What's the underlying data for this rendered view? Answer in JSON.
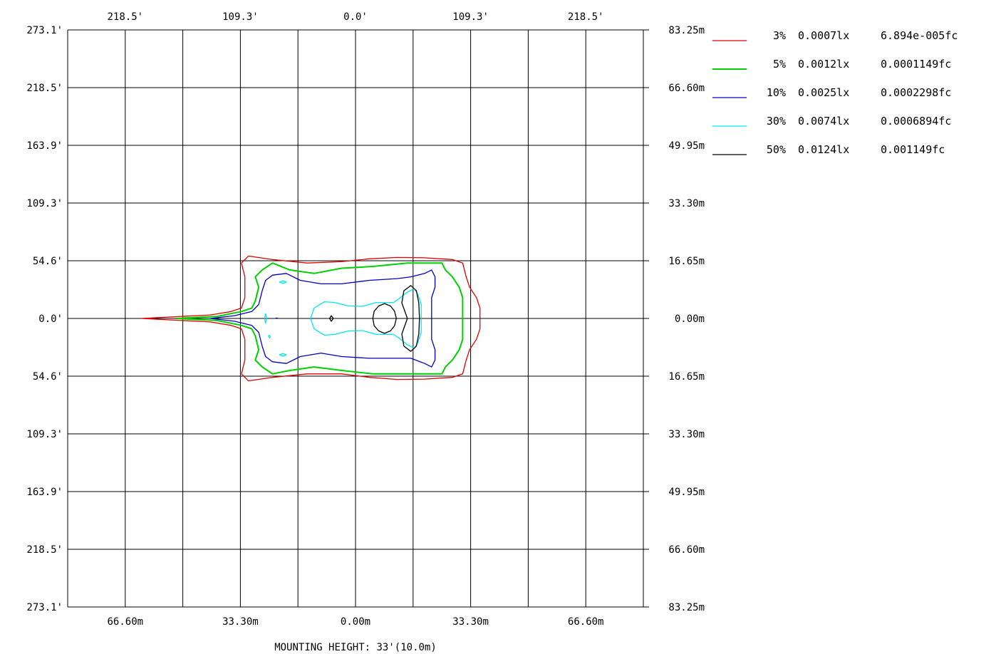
{
  "chart_data": {
    "type": "isolux-contour",
    "grid": true,
    "legend_placement": "right",
    "x_range_m": [
      -83.25,
      83.25
    ],
    "y_range_m": [
      -83.25,
      83.25
    ],
    "top_tick_labels": [
      "218.5'",
      "109.3'",
      "0.0'",
      "109.3'",
      "218.5'"
    ],
    "bottom_tick_labels": [
      "66.60m",
      "33.30m",
      "0.00m",
      "33.30m",
      "66.60m"
    ],
    "left_tick_labels": [
      "273.1'",
      "218.5'",
      "163.9'",
      "109.3'",
      "54.6'",
      "0.0'",
      "54.6'",
      "109.3'",
      "163.9'",
      "218.5'",
      "273.1'"
    ],
    "right_tick_labels": [
      "83.25m",
      "66.60m",
      "49.95m",
      "33.30m",
      "16.65m",
      "0.00m",
      "16.65m",
      "33.30m",
      "49.95m",
      "66.60m",
      "83.25m"
    ],
    "footer": "MOUNTING HEIGHT: 33'(10.0m)",
    "series": [
      {
        "name": "3%",
        "lux": "0.0007lx",
        "fc": "6.894e-005fc",
        "color": "#e00000",
        "points": [
          [
            -62,
            0
          ],
          [
            -42,
            -1
          ],
          [
            -36,
            -2
          ],
          [
            -33,
            -3
          ],
          [
            -32,
            -6
          ],
          [
            -32,
            -12
          ],
          [
            -33,
            -16
          ],
          [
            -31,
            -18
          ],
          [
            -24,
            -17
          ],
          [
            -14,
            -16
          ],
          [
            -4,
            -16
          ],
          [
            4,
            -17
          ],
          [
            12,
            -17.6
          ],
          [
            20,
            -17.5
          ],
          [
            28,
            -17
          ],
          [
            31,
            -16
          ],
          [
            32,
            -12
          ],
          [
            33,
            -9
          ],
          [
            35,
            -6
          ],
          [
            36,
            -3
          ],
          [
            36,
            0
          ],
          [
            36,
            3
          ],
          [
            35,
            6
          ],
          [
            33,
            9
          ],
          [
            32,
            12
          ],
          [
            31,
            16
          ],
          [
            28,
            17
          ],
          [
            20,
            17.5
          ],
          [
            12,
            17.6
          ],
          [
            4,
            17.2
          ],
          [
            -4,
            16.4
          ],
          [
            -14,
            16
          ],
          [
            -24,
            17
          ],
          [
            -31,
            18
          ],
          [
            -33,
            16
          ],
          [
            -32,
            12
          ],
          [
            -32,
            6
          ],
          [
            -33,
            3
          ],
          [
            -36,
            2
          ],
          [
            -42,
            1
          ],
          [
            -62,
            0
          ]
        ]
      },
      {
        "name": "5%",
        "lux": "0.0012lx",
        "fc": "0.0001149fc",
        "color": "#00d000",
        "points": [
          [
            -52,
            0
          ],
          [
            -40,
            -0.6
          ],
          [
            -33,
            -2
          ],
          [
            -30,
            -3
          ],
          [
            -29,
            -5
          ],
          [
            -28,
            -9
          ],
          [
            -29,
            -12
          ],
          [
            -27,
            -14
          ],
          [
            -24,
            -16
          ],
          [
            -19,
            -15
          ],
          [
            -12,
            -14
          ],
          [
            -4,
            -15
          ],
          [
            5,
            -16
          ],
          [
            15,
            -16
          ],
          [
            20,
            -16
          ],
          [
            25,
            -16
          ],
          [
            26,
            -14
          ],
          [
            28,
            -12
          ],
          [
            30,
            -9
          ],
          [
            31,
            -6
          ],
          [
            31,
            -3
          ],
          [
            31,
            0
          ],
          [
            31,
            3
          ],
          [
            31,
            6
          ],
          [
            30,
            9
          ],
          [
            28,
            12
          ],
          [
            26,
            14
          ],
          [
            25,
            16
          ],
          [
            20,
            16
          ],
          [
            15,
            16
          ],
          [
            5,
            15
          ],
          [
            -4,
            14.5
          ],
          [
            -12,
            13
          ],
          [
            -19,
            14
          ],
          [
            -24,
            16
          ],
          [
            -27,
            14
          ],
          [
            -29,
            12
          ],
          [
            -28,
            9
          ],
          [
            -29,
            5
          ],
          [
            -30,
            3
          ],
          [
            -33,
            2
          ],
          [
            -40,
            0.6
          ],
          [
            -52,
            0
          ]
        ]
      },
      {
        "name": "10%",
        "lux": "0.0025lx",
        "fc": "0.0002298fc",
        "color": "#0000c0",
        "points": [
          [
            -42,
            0
          ],
          [
            -35,
            -0.8
          ],
          [
            -30,
            -2
          ],
          [
            -28,
            -4
          ],
          [
            -27,
            -8
          ],
          [
            -26,
            -11
          ],
          [
            -24,
            -12.5
          ],
          [
            -20,
            -13
          ],
          [
            -16,
            -11
          ],
          [
            -10,
            -10
          ],
          [
            -4,
            -11
          ],
          [
            4,
            -11.5
          ],
          [
            12,
            -11.5
          ],
          [
            16,
            -11.5
          ],
          [
            20,
            -13
          ],
          [
            22,
            -14
          ],
          [
            23,
            -12
          ],
          [
            23,
            -9
          ],
          [
            22,
            -6
          ],
          [
            22,
            -3
          ],
          [
            22,
            0
          ],
          [
            22,
            3
          ],
          [
            22,
            6
          ],
          [
            23,
            9
          ],
          [
            23,
            12
          ],
          [
            22,
            14
          ],
          [
            20,
            13
          ],
          [
            16,
            12
          ],
          [
            12,
            11.5
          ],
          [
            4,
            11
          ],
          [
            -4,
            10
          ],
          [
            -10,
            10
          ],
          [
            -16,
            11
          ],
          [
            -20,
            13
          ],
          [
            -24,
            12.5
          ],
          [
            -26,
            11
          ],
          [
            -27,
            8
          ],
          [
            -28,
            4
          ],
          [
            -30,
            2
          ],
          [
            -35,
            0.8
          ],
          [
            -42,
            0
          ]
        ]
      },
      {
        "name": "30%",
        "lux": "0.0074lx",
        "fc": "0.0006894fc",
        "color": "#00e8f0",
        "points": [
          [
            -13,
            0
          ],
          [
            -12,
            -3
          ],
          [
            -9,
            -4.8
          ],
          [
            -6,
            -4.6
          ],
          [
            -2,
            -3.6
          ],
          [
            2,
            -3.5
          ],
          [
            6,
            -4.6
          ],
          [
            11,
            -4.6
          ],
          [
            13,
            -6
          ],
          [
            15,
            -7.6
          ],
          [
            17,
            -8.6
          ],
          [
            18,
            -7
          ],
          [
            19,
            -4
          ],
          [
            19,
            0
          ],
          [
            19,
            4
          ],
          [
            18,
            7
          ],
          [
            17,
            8.6
          ],
          [
            15,
            7.6
          ],
          [
            13,
            6
          ],
          [
            11,
            4.6
          ],
          [
            6,
            4.6
          ],
          [
            2,
            3.5
          ],
          [
            -2,
            3.6
          ],
          [
            -6,
            4.6
          ],
          [
            -9,
            4.8
          ],
          [
            -12,
            3
          ],
          [
            -13,
            0
          ]
        ]
      },
      {
        "name": "50%",
        "lux": "0.0124lx",
        "fc": "0.001149fc",
        "color": "#000000",
        "points": [
          [
            5,
            0
          ],
          [
            5.4,
            2.1
          ],
          [
            6.7,
            3.6
          ],
          [
            8.4,
            4.3
          ],
          [
            10.1,
            3.6
          ],
          [
            11.3,
            2.1
          ],
          [
            11.8,
            0
          ],
          [
            11.3,
            -2.1
          ],
          [
            10.1,
            -3.6
          ],
          [
            8.4,
            -4.3
          ],
          [
            6.7,
            -3.6
          ],
          [
            5.4,
            -2.1
          ],
          [
            5,
            0
          ]
        ]
      }
    ],
    "extra_contours": [
      {
        "color": "#00e8f0",
        "points": [
          [
            -26.3,
            0
          ],
          [
            -26,
            1.4
          ],
          [
            -25.7,
            0
          ],
          [
            -26,
            -1.4
          ],
          [
            -26.3,
            0
          ]
        ]
      },
      {
        "color": "#00e8f0",
        "points": [
          [
            -22,
            10.5
          ],
          [
            -21,
            10.9
          ],
          [
            -20,
            10.5
          ],
          [
            -21,
            10.1
          ],
          [
            -22,
            10.5
          ]
        ]
      },
      {
        "color": "#00e8f0",
        "points": [
          [
            -22,
            -10.5
          ],
          [
            -21,
            -10.9
          ],
          [
            -20,
            -10.5
          ],
          [
            -21,
            -10.1
          ],
          [
            -22,
            -10.5
          ]
        ]
      },
      {
        "color": "#00e8f0",
        "points": [
          [
            -25.2,
            -5.2
          ],
          [
            -24.8,
            -5.6
          ],
          [
            -24.6,
            -5.2
          ],
          [
            -25,
            -4.8
          ],
          [
            -25.2,
            -5.2
          ]
        ]
      },
      {
        "color": "#0000c0",
        "points": [
          [
            -23,
            0
          ],
          [
            -22.6,
            0
          ],
          [
            -22.6,
            0.1
          ],
          [
            -23,
            0.1
          ],
          [
            -23,
            0
          ]
        ]
      },
      {
        "color": "#000000",
        "points": [
          [
            -7.5,
            0
          ],
          [
            -7,
            0.8
          ],
          [
            -6.4,
            0
          ],
          [
            -7,
            -0.8
          ],
          [
            -7.5,
            0
          ]
        ]
      },
      {
        "color": "#000000",
        "points": [
          [
            14,
            -8
          ],
          [
            16,
            -9.5
          ],
          [
            17.6,
            -8
          ],
          [
            18.3,
            -4.5
          ],
          [
            18.5,
            0
          ],
          [
            18.3,
            4.5
          ],
          [
            17.6,
            8
          ],
          [
            16,
            9.5
          ],
          [
            14,
            8
          ],
          [
            13.4,
            4.5
          ],
          [
            15,
            0
          ],
          [
            13.4,
            -4.5
          ],
          [
            14,
            -8
          ]
        ]
      }
    ]
  }
}
